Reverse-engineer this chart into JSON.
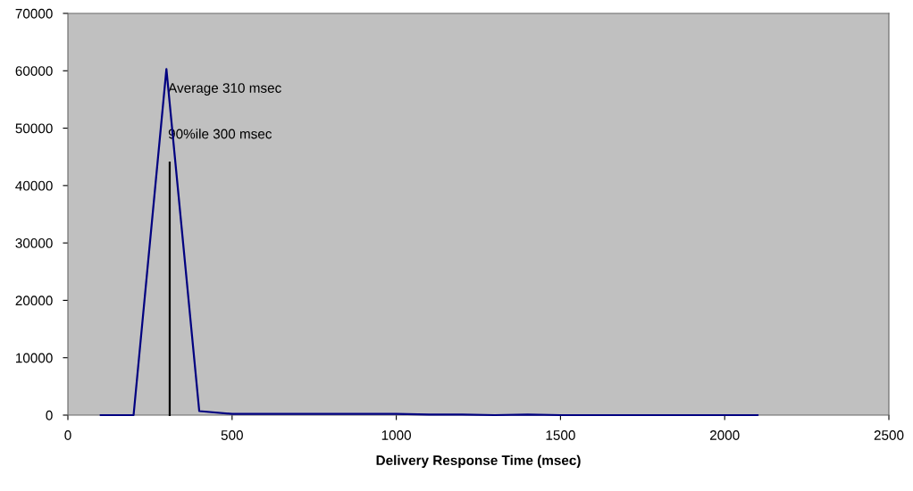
{
  "chart_data": {
    "type": "line",
    "xlabel": "Delivery Response Time (msec)",
    "xlim": [
      0,
      2500
    ],
    "xticks": [
      0,
      500,
      1000,
      1500,
      2000,
      2500
    ],
    "ylim": [
      0,
      70000
    ],
    "yticks": [
      0,
      10000,
      20000,
      30000,
      40000,
      50000,
      60000,
      70000
    ],
    "grid": false,
    "legend": false,
    "marker": "none",
    "line_style": "solid",
    "series": [
      {
        "color": "#000080",
        "x": [
          100,
          200,
          300,
          400,
          500,
          600,
          700,
          800,
          900,
          1000,
          1100,
          1200,
          1300,
          1400,
          1500,
          1600,
          1700,
          1800,
          1900,
          2000,
          2100
        ],
        "values": [
          0,
          0,
          60300,
          700,
          200,
          200,
          200,
          200,
          200,
          200,
          100,
          100,
          0,
          100,
          0,
          0,
          0,
          0,
          0,
          0,
          0
        ]
      },
      {
        "color": "#000000",
        "x": [
          310,
          310
        ],
        "values": [
          0,
          44000
        ]
      }
    ],
    "annotations": [
      {
        "text": "Average 310 msec",
        "x": 305,
        "y": 56800
      },
      {
        "text": "90%ile 300 msec",
        "x": 305,
        "y": 48800
      }
    ]
  }
}
